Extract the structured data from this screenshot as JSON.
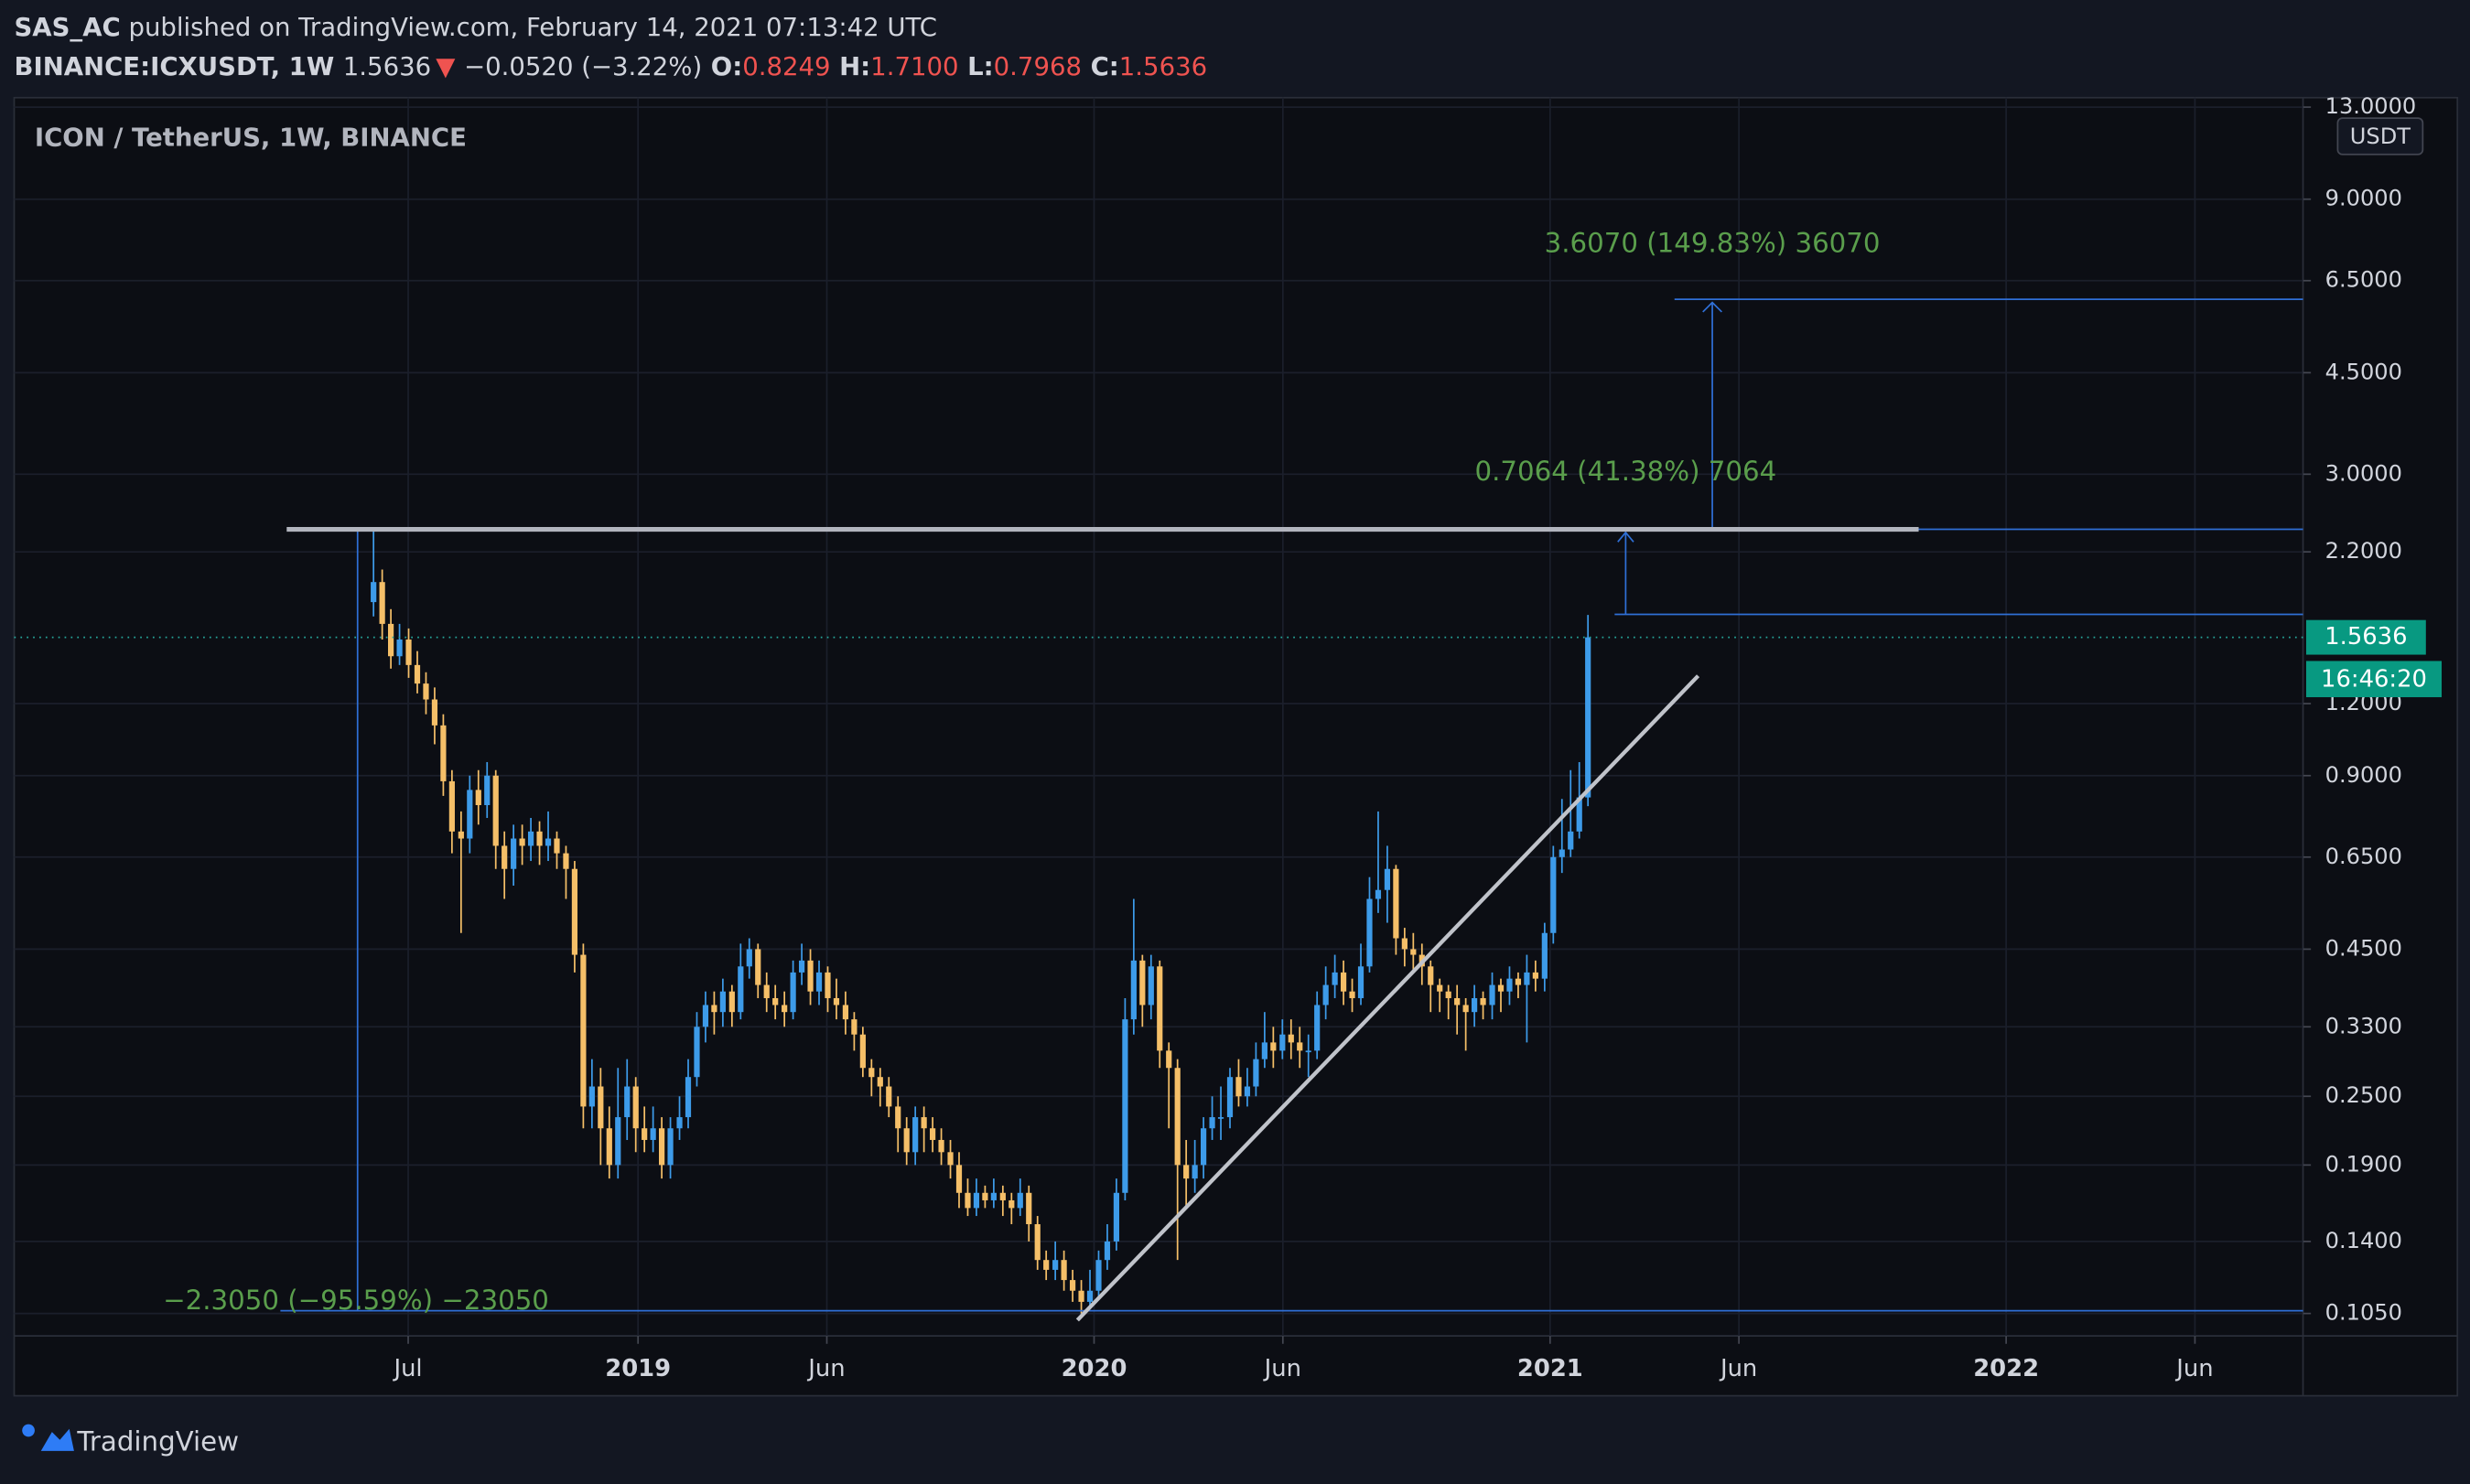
{
  "header": {
    "author": "SAS_AC",
    "published": "published on TradingView.com, February 14, 2021 07:13:42 UTC",
    "symbol": "BINANCE:ICXUSDT, 1W",
    "last": "1.5636",
    "direction": "▼",
    "change": "−0.0520 (−3.22%)",
    "ohlc": [
      {
        "label": "O:",
        "value": "0.8249"
      },
      {
        "label": "H:",
        "value": "1.7100"
      },
      {
        "label": "L:",
        "value": "0.7968"
      },
      {
        "label": "C:",
        "value": "1.5636"
      }
    ]
  },
  "footer": {
    "brand": "TradingView"
  },
  "chart_data": {
    "type": "candlestick",
    "title": "ICON / TetherUS, 1W, BINANCE",
    "currency": "USDT",
    "countdown": "16:46:20",
    "annotations": [
      "3.6070 (149.83%) 36070",
      "0.7064 (41.38%) 7064",
      "−2.3050 (−95.59%) −23050"
    ],
    "up_color": "#3d9be9",
    "down_color": "#f5bf68",
    "log_scale": true,
    "grid": true,
    "xlim": [
      2017.632,
      2022.651
    ],
    "xticks": [
      {
        "value": 2018.496,
        "label": "Jul"
      },
      2019,
      {
        "value": 2019.414,
        "label": "Jun"
      },
      2020,
      {
        "value": 2020.414,
        "label": "Jun"
      },
      2021,
      {
        "value": 2021.414,
        "label": "Jun"
      },
      2022,
      {
        "value": 2022.414,
        "label": "Jun"
      }
    ],
    "ylim": [
      0.096,
      13.5
    ],
    "yticks": [
      {
        "value": 0.105,
        "label": "0.1050"
      },
      {
        "value": 0.14,
        "label": "0.1400"
      },
      {
        "value": 0.19,
        "label": "0.1900"
      },
      {
        "value": 0.25,
        "label": "0.2500"
      },
      {
        "value": 0.33,
        "label": "0.3300"
      },
      {
        "value": 0.45,
        "label": "0.4500"
      },
      {
        "value": 0.65,
        "label": "0.6500"
      },
      {
        "value": 0.9,
        "label": "0.9000"
      },
      {
        "value": 1.2,
        "label": "1.2000"
      },
      {
        "value": 2.2,
        "label": "2.2000"
      },
      {
        "value": 3,
        "label": "3.0000"
      },
      {
        "value": 4.5,
        "label": "4.5000"
      },
      {
        "value": 6.5,
        "label": "6.5000"
      },
      {
        "value": 9,
        "label": "9.0000"
      },
      {
        "value": 13,
        "label": "13.0000"
      }
    ],
    "x": [
      2018.42,
      2018.439,
      2018.458,
      2018.477,
      2018.497,
      2018.516,
      2018.535,
      2018.554,
      2018.573,
      2018.592,
      2018.612,
      2018.631,
      2018.65,
      2018.669,
      2018.688,
      2018.707,
      2018.727,
      2018.746,
      2018.765,
      2018.784,
      2018.803,
      2018.822,
      2018.842,
      2018.861,
      2018.88,
      2018.899,
      2018.918,
      2018.937,
      2018.956,
      2018.976,
      2018.995,
      2019.014,
      2019.033,
      2019.052,
      2019.071,
      2019.091,
      2019.11,
      2019.129,
      2019.148,
      2019.167,
      2019.186,
      2019.206,
      2019.225,
      2019.244,
      2019.263,
      2019.282,
      2019.301,
      2019.321,
      2019.34,
      2019.359,
      2019.378,
      2019.397,
      2019.416,
      2019.435,
      2019.455,
      2019.474,
      2019.493,
      2019.512,
      2019.531,
      2019.55,
      2019.57,
      2019.589,
      2019.608,
      2019.627,
      2019.646,
      2019.665,
      2019.685,
      2019.704,
      2019.723,
      2019.742,
      2019.761,
      2019.78,
      2019.8,
      2019.819,
      2019.838,
      2019.857,
      2019.876,
      2019.895,
      2019.915,
      2019.934,
      2019.953,
      2019.972,
      2019.991,
      2020.01,
      2020.029,
      2020.049,
      2020.068,
      2020.087,
      2020.106,
      2020.125,
      2020.144,
      2020.164,
      2020.183,
      2020.202,
      2020.221,
      2020.24,
      2020.259,
      2020.278,
      2020.298,
      2020.317,
      2020.336,
      2020.355,
      2020.374,
      2020.393,
      2020.413,
      2020.432,
      2020.451,
      2020.47,
      2020.489,
      2020.508,
      2020.528,
      2020.547,
      2020.566,
      2020.585,
      2020.604,
      2020.623,
      2020.643,
      2020.662,
      2020.681,
      2020.7,
      2020.719,
      2020.738,
      2020.758,
      2020.777,
      2020.796,
      2020.815,
      2020.834,
      2020.853,
      2020.873,
      2020.892,
      2020.911,
      2020.93,
      2020.949,
      2020.968,
      2020.988,
      2021.007,
      2021.026,
      2021.045,
      2021.064,
      2021.083
    ],
    "open": [
      1.8,
      1.95,
      1.65,
      1.45,
      1.55,
      1.4,
      1.3,
      1.22,
      1.1,
      0.88,
      0.72,
      0.7,
      0.85,
      0.8,
      0.9,
      0.68,
      0.62,
      0.7,
      0.68,
      0.72,
      0.68,
      0.7,
      0.66,
      0.62,
      0.44,
      0.24,
      0.26,
      0.22,
      0.19,
      0.23,
      0.26,
      0.22,
      0.21,
      0.22,
      0.19,
      0.22,
      0.23,
      0.27,
      0.33,
      0.36,
      0.35,
      0.38,
      0.35,
      0.42,
      0.45,
      0.39,
      0.37,
      0.36,
      0.35,
      0.41,
      0.43,
      0.38,
      0.41,
      0.37,
      0.36,
      0.34,
      0.32,
      0.28,
      0.27,
      0.26,
      0.24,
      0.22,
      0.2,
      0.23,
      0.22,
      0.21,
      0.2,
      0.19,
      0.17,
      0.16,
      0.17,
      0.165,
      0.17,
      0.165,
      0.16,
      0.17,
      0.15,
      0.13,
      0.125,
      0.13,
      0.12,
      0.115,
      0.11,
      0.115,
      0.13,
      0.14,
      0.17,
      0.34,
      0.43,
      0.36,
      0.42,
      0.3,
      0.28,
      0.19,
      0.18,
      0.19,
      0.22,
      0.23,
      0.23,
      0.27,
      0.25,
      0.26,
      0.29,
      0.31,
      0.3,
      0.32,
      0.31,
      0.3,
      0.3,
      0.36,
      0.39,
      0.41,
      0.38,
      0.37,
      0.42,
      0.55,
      0.57,
      0.62,
      0.47,
      0.45,
      0.44,
      0.42,
      0.39,
      0.38,
      0.37,
      0.36,
      0.35,
      0.37,
      0.36,
      0.39,
      0.38,
      0.4,
      0.39,
      0.41,
      0.4,
      0.48,
      0.65,
      0.67,
      0.72,
      0.8249
    ],
    "high": [
      2.4,
      2.05,
      1.75,
      1.65,
      1.62,
      1.48,
      1.36,
      1.28,
      1.15,
      0.92,
      0.78,
      0.9,
      0.92,
      0.95,
      0.92,
      0.72,
      0.74,
      0.74,
      0.76,
      0.75,
      0.78,
      0.72,
      0.68,
      0.64,
      0.46,
      0.29,
      0.28,
      0.24,
      0.28,
      0.29,
      0.27,
      0.24,
      0.24,
      0.23,
      0.23,
      0.25,
      0.29,
      0.35,
      0.38,
      0.38,
      0.4,
      0.39,
      0.46,
      0.47,
      0.46,
      0.41,
      0.39,
      0.38,
      0.43,
      0.46,
      0.45,
      0.43,
      0.42,
      0.4,
      0.38,
      0.35,
      0.33,
      0.29,
      0.28,
      0.27,
      0.25,
      0.23,
      0.24,
      0.24,
      0.23,
      0.22,
      0.21,
      0.2,
      0.18,
      0.18,
      0.175,
      0.18,
      0.175,
      0.17,
      0.18,
      0.175,
      0.155,
      0.135,
      0.14,
      0.135,
      0.125,
      0.12,
      0.125,
      0.135,
      0.15,
      0.18,
      0.37,
      0.55,
      0.44,
      0.44,
      0.43,
      0.31,
      0.29,
      0.21,
      0.21,
      0.23,
      0.25,
      0.26,
      0.28,
      0.29,
      0.28,
      0.31,
      0.35,
      0.33,
      0.34,
      0.34,
      0.33,
      0.32,
      0.38,
      0.42,
      0.44,
      0.43,
      0.4,
      0.46,
      0.6,
      0.78,
      0.68,
      0.63,
      0.49,
      0.48,
      0.46,
      0.43,
      0.4,
      0.39,
      0.39,
      0.37,
      0.39,
      0.38,
      0.41,
      0.4,
      0.42,
      0.41,
      0.44,
      0.43,
      0.5,
      0.68,
      0.82,
      0.92,
      0.95,
      1.71
    ],
    "low": [
      1.7,
      1.55,
      1.38,
      1.4,
      1.33,
      1.25,
      1.15,
      1.02,
      0.83,
      0.66,
      0.48,
      0.66,
      0.74,
      0.76,
      0.62,
      0.55,
      0.58,
      0.63,
      0.64,
      0.63,
      0.64,
      0.62,
      0.55,
      0.41,
      0.22,
      0.22,
      0.19,
      0.18,
      0.18,
      0.21,
      0.2,
      0.2,
      0.2,
      0.18,
      0.18,
      0.21,
      0.22,
      0.26,
      0.31,
      0.32,
      0.33,
      0.33,
      0.34,
      0.4,
      0.37,
      0.35,
      0.34,
      0.33,
      0.34,
      0.39,
      0.36,
      0.36,
      0.35,
      0.34,
      0.32,
      0.3,
      0.27,
      0.25,
      0.24,
      0.23,
      0.2,
      0.19,
      0.19,
      0.2,
      0.2,
      0.19,
      0.18,
      0.16,
      0.155,
      0.155,
      0.16,
      0.16,
      0.155,
      0.15,
      0.155,
      0.14,
      0.125,
      0.12,
      0.12,
      0.115,
      0.11,
      0.105,
      0.108,
      0.112,
      0.125,
      0.135,
      0.165,
      0.32,
      0.33,
      0.34,
      0.28,
      0.22,
      0.13,
      0.16,
      0.17,
      0.18,
      0.21,
      0.21,
      0.22,
      0.24,
      0.24,
      0.25,
      0.28,
      0.28,
      0.29,
      0.29,
      0.28,
      0.27,
      0.29,
      0.34,
      0.37,
      0.36,
      0.35,
      0.36,
      0.41,
      0.52,
      0.5,
      0.44,
      0.42,
      0.41,
      0.39,
      0.35,
      0.35,
      0.34,
      0.32,
      0.3,
      0.33,
      0.34,
      0.34,
      0.35,
      0.36,
      0.37,
      0.31,
      0.38,
      0.38,
      0.46,
      0.61,
      0.65,
      0.7,
      0.7968
    ],
    "close": [
      1.95,
      1.65,
      1.45,
      1.55,
      1.4,
      1.3,
      1.22,
      1.1,
      0.88,
      0.72,
      0.7,
      0.85,
      0.8,
      0.9,
      0.68,
      0.62,
      0.7,
      0.68,
      0.72,
      0.68,
      0.7,
      0.66,
      0.62,
      0.44,
      0.24,
      0.26,
      0.22,
      0.19,
      0.23,
      0.26,
      0.22,
      0.21,
      0.22,
      0.19,
      0.22,
      0.23,
      0.27,
      0.33,
      0.36,
      0.35,
      0.38,
      0.35,
      0.42,
      0.45,
      0.39,
      0.37,
      0.36,
      0.35,
      0.41,
      0.43,
      0.38,
      0.41,
      0.37,
      0.36,
      0.34,
      0.32,
      0.28,
      0.27,
      0.26,
      0.24,
      0.22,
      0.2,
      0.23,
      0.22,
      0.21,
      0.2,
      0.19,
      0.17,
      0.16,
      0.17,
      0.165,
      0.17,
      0.165,
      0.16,
      0.17,
      0.15,
      0.13,
      0.125,
      0.13,
      0.12,
      0.115,
      0.11,
      0.115,
      0.13,
      0.14,
      0.17,
      0.34,
      0.43,
      0.36,
      0.42,
      0.3,
      0.28,
      0.19,
      0.18,
      0.19,
      0.22,
      0.23,
      0.23,
      0.27,
      0.25,
      0.26,
      0.29,
      0.31,
      0.3,
      0.32,
      0.31,
      0.3,
      0.3,
      0.36,
      0.39,
      0.41,
      0.38,
      0.37,
      0.42,
      0.55,
      0.57,
      0.62,
      0.47,
      0.45,
      0.44,
      0.42,
      0.39,
      0.38,
      0.37,
      0.36,
      0.35,
      0.37,
      0.36,
      0.39,
      0.38,
      0.4,
      0.39,
      0.41,
      0.4,
      0.48,
      0.65,
      0.67,
      0.72,
      0.8249,
      1.5636
    ]
  }
}
